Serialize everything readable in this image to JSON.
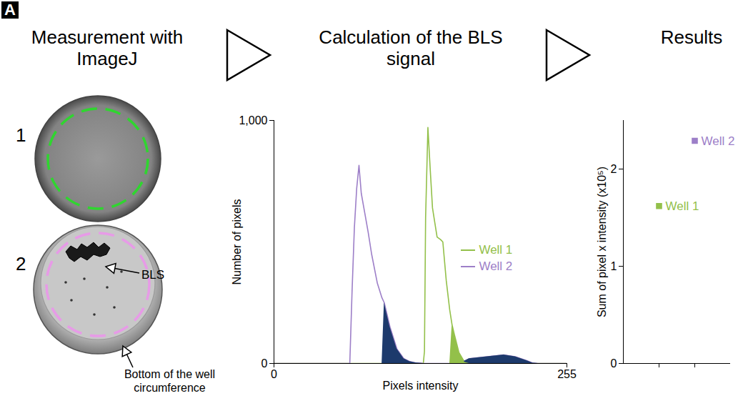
{
  "panel_letter": "A",
  "steps": [
    "Measurement with ImageJ",
    "Calculation of the BLS signal",
    "Results"
  ],
  "diagram": {
    "wells": [
      {
        "label": "1",
        "color": "#2fd62f"
      },
      {
        "label": "2",
        "color": "#e79be7"
      }
    ],
    "annotations": [
      "BLS",
      "Bottom of the well circumference"
    ]
  },
  "chart_data": [
    {
      "type": "line",
      "x_label": "Pixels intensity",
      "y_label": "Number of pixels",
      "x": [
        0,
        60,
        66,
        68,
        70,
        72,
        74,
        76,
        79,
        82,
        85,
        90,
        94,
        96,
        101,
        107,
        113,
        118,
        123,
        128,
        130,
        131,
        132,
        134,
        136,
        138,
        140,
        142,
        145,
        147,
        150,
        153,
        155,
        157,
        161,
        166,
        170,
        180,
        190,
        200,
        210,
        220,
        225,
        230,
        255
      ],
      "series": [
        {
          "name": "Well 1",
          "color": "#93c04a",
          "type": "line",
          "values": [
            0,
            0,
            0,
            0,
            0,
            0,
            0,
            0,
            0,
            0,
            0,
            0,
            0,
            0,
            0,
            0,
            0,
            0,
            0,
            0,
            0,
            50,
            600,
            971,
            800,
            640,
            580,
            520,
            510,
            500,
            340,
            220,
            160,
            120,
            45,
            5,
            0,
            0,
            0,
            0,
            0,
            0,
            0,
            0,
            0
          ]
        },
        {
          "name": "Well 2",
          "color": "#9d7fc8",
          "type": "line",
          "values": [
            0,
            0,
            0,
            300,
            560,
            720,
            815,
            700,
            620,
            540,
            450,
            330,
            270,
            250,
            150,
            60,
            20,
            8,
            3,
            1,
            0,
            0,
            0,
            0,
            0,
            0,
            0,
            0,
            0,
            0,
            0,
            0,
            0,
            0,
            0,
            10,
            20,
            25,
            30,
            35,
            28,
            12,
            2,
            0,
            0
          ]
        },
        {
          "type": "area",
          "color": "#1d3a6c",
          "values": [
            null,
            null,
            null,
            null,
            null,
            null,
            null,
            null,
            null,
            null,
            null,
            null,
            null,
            250,
            150,
            60,
            20,
            8,
            3,
            1,
            0,
            0,
            0,
            0,
            0,
            0,
            0,
            0,
            0,
            0,
            0,
            0,
            0,
            0,
            0,
            10,
            20,
            25,
            30,
            35,
            28,
            12,
            2,
            0,
            null
          ]
        },
        {
          "type": "area",
          "color": "#93c04a",
          "values": [
            null,
            null,
            null,
            null,
            null,
            null,
            null,
            null,
            null,
            null,
            null,
            null,
            null,
            null,
            null,
            null,
            null,
            null,
            null,
            null,
            null,
            null,
            null,
            null,
            null,
            null,
            null,
            null,
            null,
            null,
            null,
            null,
            160,
            120,
            45,
            5,
            null,
            null,
            null,
            null,
            null,
            null,
            null,
            null,
            null
          ]
        }
      ],
      "xlim": [
        0,
        255
      ],
      "xticks": [
        0,
        255
      ],
      "ylim": [
        0,
        1000
      ],
      "yticks": [
        0,
        {
          "value": 1000,
          "label": "1,000"
        }
      ],
      "legend": "right"
    },
    {
      "type": "scatter",
      "y_label": "Sum of pixel x intensity (x10⁵)",
      "categories": [
        null,
        null
      ],
      "values": [
        1.62,
        2.29
      ],
      "colors": [
        "#93c04a",
        "#9d7fc8"
      ],
      "point_labels": [
        "Well 1",
        "Well 2"
      ],
      "marker": "square",
      "ylim": [
        0,
        2.5
      ],
      "yticks": [
        0,
        1,
        2
      ],
      "tick_labels": "y"
    }
  ]
}
